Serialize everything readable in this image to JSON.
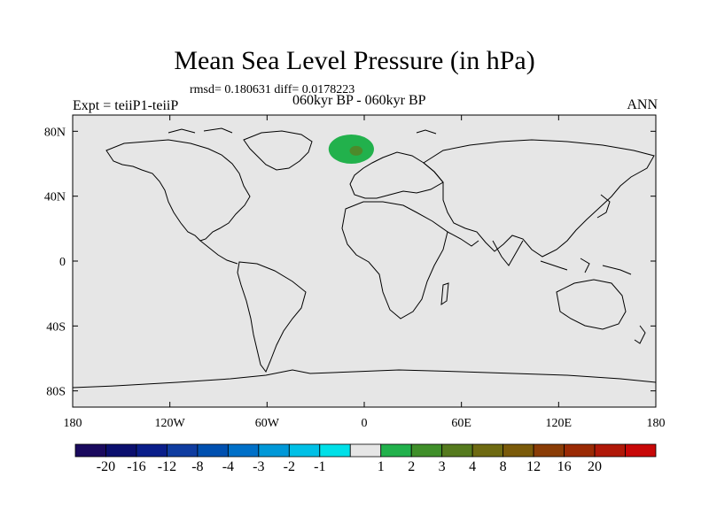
{
  "title": "Mean Sea Level Pressure (in hPa)",
  "stats": "rmsd= 0.180631 diff= 0.0178223",
  "experiment": "Expt = teiiP1-teiiP",
  "period": "060kyr BP - 060kyr BP",
  "season": "ANN",
  "map": {
    "projection": "cylindrical-equidistant",
    "lon_range": [
      -180,
      180
    ],
    "lat_range": [
      -90,
      90
    ],
    "lat_ticks": [
      {
        "value": 80,
        "label": "80N"
      },
      {
        "value": 40,
        "label": "40N"
      },
      {
        "value": 0,
        "label": "0"
      },
      {
        "value": -40,
        "label": "40S"
      },
      {
        "value": -80,
        "label": "80S"
      }
    ],
    "lon_ticks": [
      {
        "value": -180,
        "label": "180"
      },
      {
        "value": -120,
        "label": "120W"
      },
      {
        "value": -60,
        "label": "60W"
      },
      {
        "value": 0,
        "label": "0"
      },
      {
        "value": 60,
        "label": "60E"
      },
      {
        "value": 120,
        "label": "120E"
      },
      {
        "value": 180,
        "label": "180"
      }
    ],
    "background_color": "#e6e6e6",
    "anomalies": [
      {
        "name": "north-atlantic-outer",
        "lon_center": -8,
        "lat_center": 69,
        "lon_radius": 14,
        "lat_radius": 9,
        "range": "1 to 2",
        "color": "#22b14c"
      },
      {
        "name": "north-atlantic-inner",
        "lon_center": -5,
        "lat_center": 68,
        "lon_radius": 4,
        "lat_radius": 3,
        "range": "2 to 3",
        "color": "#4d8a2a"
      }
    ]
  },
  "colorbar": {
    "colors": [
      "#1a0a5e",
      "#0b0f6e",
      "#0a1e8a",
      "#0f3ca0",
      "#0050b0",
      "#0070c8",
      "#0098d8",
      "#00c0e6",
      "#00e0e8",
      "#e6e6e6",
      "#22b14c",
      "#3f8f2a",
      "#557a1e",
      "#6e6a12",
      "#7a5a0a",
      "#8a3c06",
      "#9a2a04",
      "#b01808",
      "#c80808"
    ],
    "labels": [
      "-20",
      "-16",
      "-12",
      "-8",
      "-4",
      "-3",
      "-2",
      "-1",
      "1",
      "2",
      "3",
      "4",
      "8",
      "12",
      "16",
      "20"
    ]
  }
}
